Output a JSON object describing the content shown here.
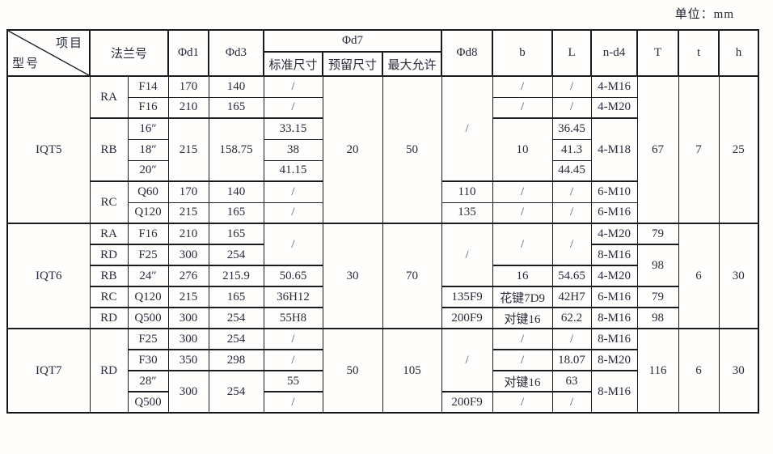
{
  "unit_label": "单位：mm",
  "colors": {
    "border": "#1c1c1c",
    "text": "#272c3a"
  },
  "table": {
    "header": {
      "diagonal_top": "项目",
      "diagonal_bottom": "型号",
      "flange_no": "法兰号",
      "d1": "Φd1",
      "d3": "Φd3",
      "d7": "Φd7",
      "d7_standard": "标准尺寸",
      "d7_reserved": "预留尺寸",
      "d7_max": "最大允许",
      "d8": "Φd8",
      "b": "b",
      "L": "L",
      "n_d4": "n-d4",
      "T": "T",
      "t": "t",
      "h": "h"
    },
    "rows": [
      {
        "cells": [
          {
            "t": "IQT5",
            "rs": 7,
            "name": "model-cell"
          },
          {
            "t": "RA",
            "rs": 2,
            "name": "series-cell"
          },
          {
            "t": "F14"
          },
          {
            "t": "170"
          },
          {
            "t": "140"
          },
          {
            "t": "/"
          },
          {
            "t": "20",
            "rs": 7
          },
          {
            "t": "50",
            "rs": 7
          },
          {
            "t": "/",
            "rs": 5
          },
          {
            "t": "/"
          },
          {
            "t": "/"
          },
          {
            "t": "4-M16"
          },
          {
            "t": "67",
            "rs": 7
          },
          {
            "t": "7",
            "rs": 7
          },
          {
            "t": "25",
            "rs": 7
          }
        ]
      },
      {
        "cells": [
          {
            "t": "F16"
          },
          {
            "t": "210"
          },
          {
            "t": "165"
          },
          {
            "t": "/"
          },
          {
            "t": "/"
          },
          {
            "t": "/"
          },
          {
            "t": "4-M20"
          }
        ]
      },
      {
        "thick": true,
        "cells": [
          {
            "t": "RB",
            "rs": 3,
            "name": "series-cell"
          },
          {
            "t": "16″"
          },
          {
            "t": "215",
            "rs": 3
          },
          {
            "t": "158.75",
            "rs": 3
          },
          {
            "t": "33.15"
          },
          {
            "t": "10",
            "rs": 3
          },
          {
            "t": "36.45"
          },
          {
            "t": "4-M18",
            "rs": 3
          }
        ]
      },
      {
        "cells": [
          {
            "t": "18″"
          },
          {
            "t": "38"
          },
          {
            "t": "41.3"
          }
        ]
      },
      {
        "cells": [
          {
            "t": "20″"
          },
          {
            "t": "41.15"
          },
          {
            "t": "44.45"
          }
        ]
      },
      {
        "thick": true,
        "cells": [
          {
            "t": "RC",
            "rs": 2,
            "name": "series-cell"
          },
          {
            "t": "Q60"
          },
          {
            "t": "170"
          },
          {
            "t": "140"
          },
          {
            "t": "/"
          },
          {
            "t": "110"
          },
          {
            "t": "/"
          },
          {
            "t": "/"
          },
          {
            "t": "6-M10"
          }
        ]
      },
      {
        "cells": [
          {
            "t": "Q120"
          },
          {
            "t": "215"
          },
          {
            "t": "165"
          },
          {
            "t": "/"
          },
          {
            "t": "135"
          },
          {
            "t": "/"
          },
          {
            "t": "/"
          },
          {
            "t": "6-M16"
          }
        ]
      },
      {
        "thick": true,
        "cells": [
          {
            "t": "IQT6",
            "rs": 5,
            "name": "model-cell"
          },
          {
            "t": "RA",
            "name": "series-cell"
          },
          {
            "t": "F16"
          },
          {
            "t": "210"
          },
          {
            "t": "165"
          },
          {
            "t": "/",
            "rs": 2
          },
          {
            "t": "30",
            "rs": 5
          },
          {
            "t": "70",
            "rs": 5
          },
          {
            "t": "/",
            "rs": 3
          },
          {
            "t": "/",
            "rs": 2
          },
          {
            "t": "/",
            "rs": 2
          },
          {
            "t": "4-M20"
          },
          {
            "t": "79"
          },
          {
            "t": "6",
            "rs": 5
          },
          {
            "t": "30",
            "rs": 5
          }
        ]
      },
      {
        "thick": true,
        "cells": [
          {
            "t": "RD",
            "name": "series-cell"
          },
          {
            "t": "F25"
          },
          {
            "t": "300"
          },
          {
            "t": "254"
          },
          {
            "t": "8-M16"
          },
          {
            "t": "98",
            "rs": 2
          }
        ]
      },
      {
        "thick": true,
        "cells": [
          {
            "t": "RB",
            "name": "series-cell"
          },
          {
            "t": "24″"
          },
          {
            "t": "276"
          },
          {
            "t": "215.9"
          },
          {
            "t": "50.65"
          },
          {
            "t": "16"
          },
          {
            "t": "54.65"
          },
          {
            "t": "4-M20"
          }
        ]
      },
      {
        "thick": true,
        "cells": [
          {
            "t": "RC",
            "name": "series-cell"
          },
          {
            "t": "Q120"
          },
          {
            "t": "215"
          },
          {
            "t": "165"
          },
          {
            "t": "36H12"
          },
          {
            "t": "135F9"
          },
          {
            "t": "花键7D9"
          },
          {
            "t": "42H7"
          },
          {
            "t": "6-M16"
          },
          {
            "t": "79"
          }
        ]
      },
      {
        "thick": true,
        "cells": [
          {
            "t": "RD",
            "name": "series-cell"
          },
          {
            "t": "Q500"
          },
          {
            "t": "300"
          },
          {
            "t": "254"
          },
          {
            "t": "55H8"
          },
          {
            "t": "200F9"
          },
          {
            "t": "对键16"
          },
          {
            "t": "62.2"
          },
          {
            "t": "8-M16"
          },
          {
            "t": "98"
          }
        ]
      },
      {
        "thick": true,
        "cells": [
          {
            "t": "IQT7",
            "rs": 4,
            "name": "model-cell"
          },
          {
            "t": "RD",
            "rs": 4,
            "name": "series-cell"
          },
          {
            "t": "F25"
          },
          {
            "t": "300"
          },
          {
            "t": "254"
          },
          {
            "t": "/"
          },
          {
            "t": "50",
            "rs": 4
          },
          {
            "t": "105",
            "rs": 4
          },
          {
            "t": "/",
            "rs": 3
          },
          {
            "t": "/"
          },
          {
            "t": "/"
          },
          {
            "t": "8-M16"
          },
          {
            "t": "116",
            "rs": 4
          },
          {
            "t": "6",
            "rs": 4
          },
          {
            "t": "30",
            "rs": 4
          }
        ]
      },
      {
        "thick": true,
        "cells": [
          {
            "t": "F30"
          },
          {
            "t": "350"
          },
          {
            "t": "298"
          },
          {
            "t": "/"
          },
          {
            "t": "/"
          },
          {
            "t": "18.07"
          },
          {
            "t": "8-M20"
          }
        ]
      },
      {
        "thick": true,
        "cells": [
          {
            "t": "28″"
          },
          {
            "t": "300",
            "rs": 2
          },
          {
            "t": "254",
            "rs": 2
          },
          {
            "t": "55"
          },
          {
            "t": "对键16"
          },
          {
            "t": "63"
          },
          {
            "t": "8-M16",
            "rs": 2
          }
        ]
      },
      {
        "thick": true,
        "cells": [
          {
            "t": "Q500"
          },
          {
            "t": "/"
          },
          {
            "t": "200F9"
          },
          {
            "t": "/"
          },
          {
            "t": "/"
          }
        ]
      }
    ]
  }
}
